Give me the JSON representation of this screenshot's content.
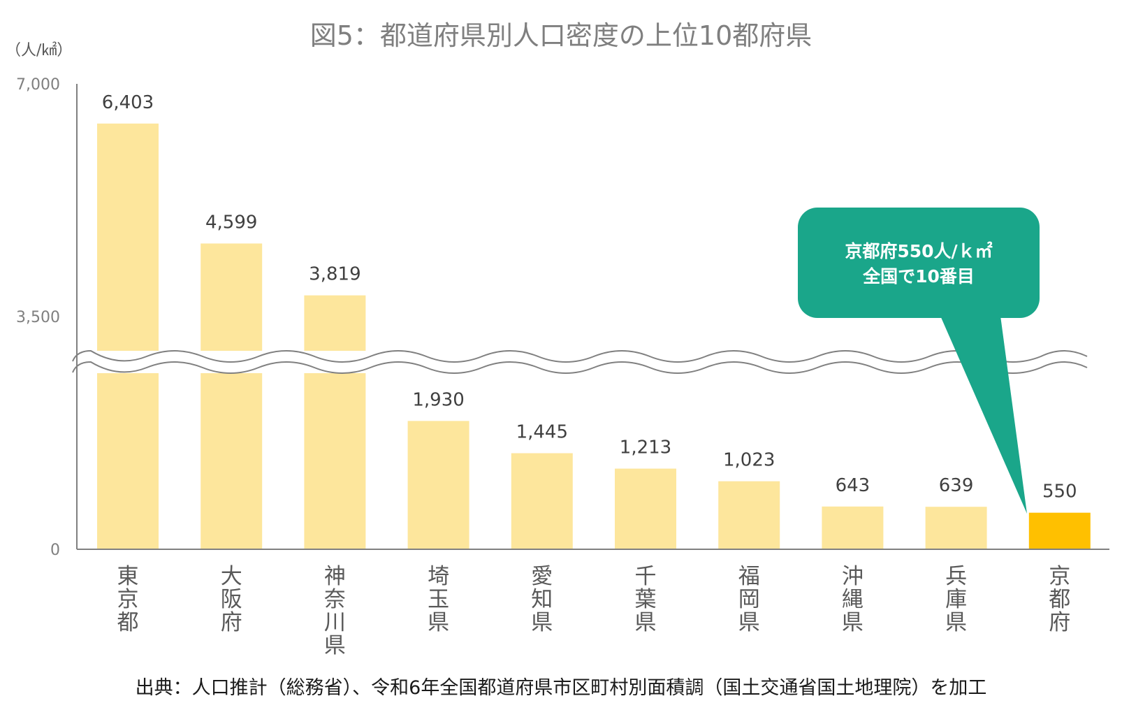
{
  "chart_data": {
    "type": "bar",
    "title": "図5：都道府県別人口密度の上位10都府県",
    "ylabel": "（人/㎢）",
    "ylim": [
      0,
      7000
    ],
    "yticks": [
      "7,000",
      "3,500",
      "0"
    ],
    "axis_break": true,
    "categories": [
      "東京都",
      "大阪府",
      "神奈川県",
      "埼玉県",
      "愛知県",
      "千葉県",
      "福岡県",
      "沖縄県",
      "兵庫県",
      "京都府"
    ],
    "values": [
      6403,
      4599,
      3819,
      1930,
      1445,
      1213,
      1023,
      643,
      639,
      550
    ],
    "value_labels": [
      "6,403",
      "4,599",
      "3,819",
      "1,930",
      "1,445",
      "1,213",
      "1,023",
      "643",
      "639",
      "550"
    ],
    "highlight_index": 9,
    "colors": {
      "bar": "#fde69c",
      "highlight": "#ffc000",
      "callout": "#1aa68a",
      "axis": "#808080"
    },
    "callout": {
      "line1": "京都府550人/ｋ㎡",
      "line2": "全国で10番目"
    },
    "source": "出典：人口推計（総務省）、令和6年全国都道府県市区町村別面積調（国土交通省国土地理院）を加工"
  }
}
